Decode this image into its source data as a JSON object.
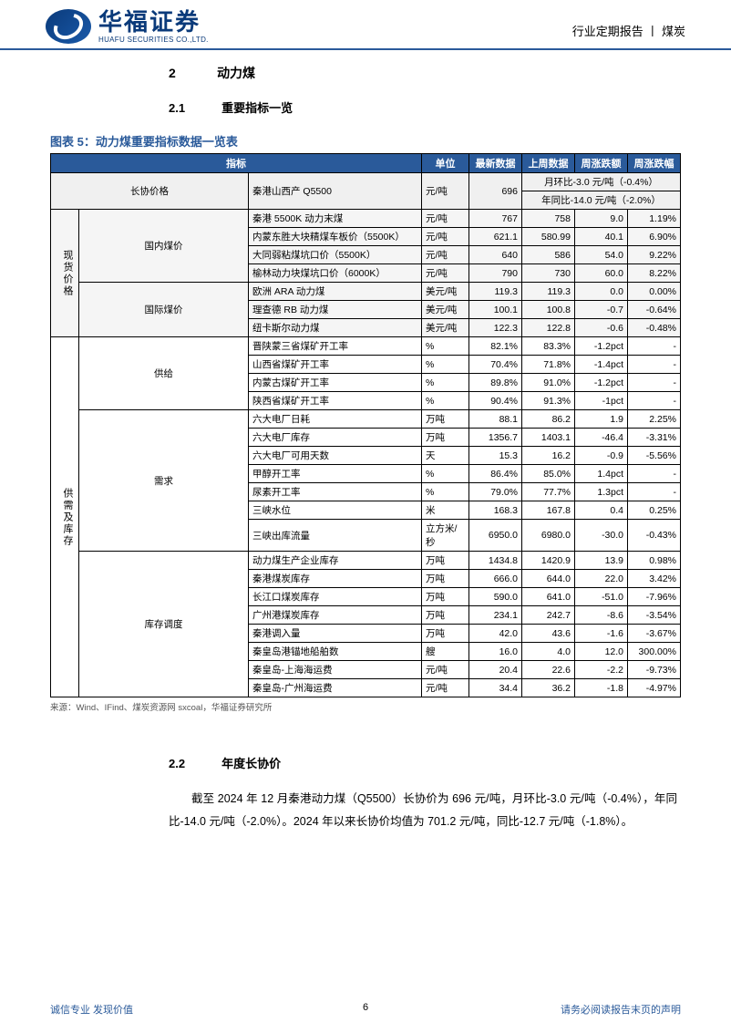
{
  "header": {
    "logo_cn": "华福证券",
    "logo_en": "HUAFU SECURITIES CO.,LTD.",
    "right": "行业定期报告 丨 煤炭"
  },
  "sections": {
    "s2_num": "2",
    "s2_title": "动力煤",
    "s21_num": "2.1",
    "s21_title": "重要指标一览",
    "s22_num": "2.2",
    "s22_title": "年度长协价"
  },
  "figure_title": "图表 5：动力煤重要指标数据一览表",
  "table_headers": {
    "indicator": "指标",
    "unit": "单位",
    "latest": "最新数据",
    "prev": "上周数据",
    "chg": "周涨跌额",
    "pct": "周涨跌幅"
  },
  "group_labels": {
    "changxie": "长协价格",
    "xianhuo": "现货价格",
    "guonei": "国内煤价",
    "guoji": "国际煤价",
    "gongxu": "供需及库存",
    "gongji": "供给",
    "xuqiu": "需求",
    "kucun": "库存调度"
  },
  "row0": {
    "ind": "秦港山西产 Q5500",
    "unit": "元/吨",
    "latest": "696",
    "mom": "月环比-3.0 元/吨（-0.4%）",
    "yoy": "年同比-14.0 元/吨（-2.0%）"
  },
  "rows": [
    {
      "grp": "gn",
      "ind": "秦港 5500K 动力末煤",
      "unit": "元/吨",
      "a": "767",
      "b": "758",
      "c": "9.0",
      "d": "1.19%"
    },
    {
      "grp": "gn",
      "ind": "内蒙东胜大块精煤车板价（5500K）",
      "unit": "元/吨",
      "a": "621.1",
      "b": "580.99",
      "c": "40.1",
      "d": "6.90%"
    },
    {
      "grp": "gn",
      "ind": "大同弱粘煤坑口价（5500K）",
      "unit": "元/吨",
      "a": "640",
      "b": "586",
      "c": "54.0",
      "d": "9.22%"
    },
    {
      "grp": "gn",
      "ind": "榆林动力块煤坑口价（6000K）",
      "unit": "元/吨",
      "a": "790",
      "b": "730",
      "c": "60.0",
      "d": "8.22%"
    },
    {
      "grp": "gj",
      "ind": "欧洲 ARA 动力煤",
      "unit": "美元/吨",
      "a": "119.3",
      "b": "119.3",
      "c": "0.0",
      "d": "0.00%"
    },
    {
      "grp": "gj",
      "ind": "理查德 RB 动力煤",
      "unit": "美元/吨",
      "a": "100.1",
      "b": "100.8",
      "c": "-0.7",
      "d": "-0.64%"
    },
    {
      "grp": "gj",
      "ind": "纽卡斯尔动力煤",
      "unit": "美元/吨",
      "a": "122.3",
      "b": "122.8",
      "c": "-0.6",
      "d": "-0.48%"
    },
    {
      "grp": "sg",
      "ind": "晋陕蒙三省煤矿开工率",
      "unit": "%",
      "a": "82.1%",
      "b": "83.3%",
      "c": "-1.2pct",
      "d": "-"
    },
    {
      "grp": "sg",
      "ind": "山西省煤矿开工率",
      "unit": "%",
      "a": "70.4%",
      "b": "71.8%",
      "c": "-1.4pct",
      "d": "-"
    },
    {
      "grp": "sg",
      "ind": "内蒙古煤矿开工率",
      "unit": "%",
      "a": "89.8%",
      "b": "91.0%",
      "c": "-1.2pct",
      "d": "-"
    },
    {
      "grp": "sg",
      "ind": "陕西省煤矿开工率",
      "unit": "%",
      "a": "90.4%",
      "b": "91.3%",
      "c": "-1pct",
      "d": "-"
    },
    {
      "grp": "xq",
      "ind": "六大电厂日耗",
      "unit": "万吨",
      "a": "88.1",
      "b": "86.2",
      "c": "1.9",
      "d": "2.25%"
    },
    {
      "grp": "xq",
      "ind": "六大电厂库存",
      "unit": "万吨",
      "a": "1356.7",
      "b": "1403.1",
      "c": "-46.4",
      "d": "-3.31%"
    },
    {
      "grp": "xq",
      "ind": "六大电厂可用天数",
      "unit": "天",
      "a": "15.3",
      "b": "16.2",
      "c": "-0.9",
      "d": "-5.56%"
    },
    {
      "grp": "xq",
      "ind": "甲醇开工率",
      "unit": "%",
      "a": "86.4%",
      "b": "85.0%",
      "c": "1.4pct",
      "d": "-"
    },
    {
      "grp": "xq",
      "ind": "尿素开工率",
      "unit": "%",
      "a": "79.0%",
      "b": "77.7%",
      "c": "1.3pct",
      "d": "-"
    },
    {
      "grp": "xq",
      "ind": "三峡水位",
      "unit": "米",
      "a": "168.3",
      "b": "167.8",
      "c": "0.4",
      "d": "0.25%"
    },
    {
      "grp": "xq",
      "ind": "三峡出库流量",
      "unit": "立方米/秒",
      "a": "6950.0",
      "b": "6980.0",
      "c": "-30.0",
      "d": "-0.43%"
    },
    {
      "grp": "kc",
      "ind": "动力煤生产企业库存",
      "unit": "万吨",
      "a": "1434.8",
      "b": "1420.9",
      "c": "13.9",
      "d": "0.98%"
    },
    {
      "grp": "kc",
      "ind": "秦港煤炭库存",
      "unit": "万吨",
      "a": "666.0",
      "b": "644.0",
      "c": "22.0",
      "d": "3.42%"
    },
    {
      "grp": "kc",
      "ind": "长江口煤炭库存",
      "unit": "万吨",
      "a": "590.0",
      "b": "641.0",
      "c": "-51.0",
      "d": "-7.96%"
    },
    {
      "grp": "kc",
      "ind": "广州港煤炭库存",
      "unit": "万吨",
      "a": "234.1",
      "b": "242.7",
      "c": "-8.6",
      "d": "-3.54%"
    },
    {
      "grp": "kc",
      "ind": "秦港调入量",
      "unit": "万吨",
      "a": "42.0",
      "b": "43.6",
      "c": "-1.6",
      "d": "-3.67%"
    },
    {
      "grp": "kc",
      "ind": "秦皇岛港锚地船舶数",
      "unit": "艘",
      "a": "16.0",
      "b": "4.0",
      "c": "12.0",
      "d": "300.00%"
    },
    {
      "grp": "kc",
      "ind": "秦皇岛-上海海运费",
      "unit": "元/吨",
      "a": "20.4",
      "b": "22.6",
      "c": "-2.2",
      "d": "-9.73%"
    },
    {
      "grp": "kc",
      "ind": "秦皇岛-广州海运费",
      "unit": "元/吨",
      "a": "34.4",
      "b": "36.2",
      "c": "-1.8",
      "d": "-4.97%"
    }
  ],
  "source": "来源：Wind、IFind、煤炭资源网 sxcoal，华福证券研究所",
  "body": "截至 2024 年 12 月秦港动力煤（Q5500）长协价为 696 元/吨，月环比-3.0 元/吨（-0.4%），年同比-14.0 元/吨（-2.0%）。2024 年以来长协价均值为 701.2 元/吨，同比-12.7 元/吨（-1.8%）。",
  "footer": {
    "left": "诚信专业  发现价值",
    "page": "6",
    "right": "请务必阅读报告末页的声明"
  }
}
